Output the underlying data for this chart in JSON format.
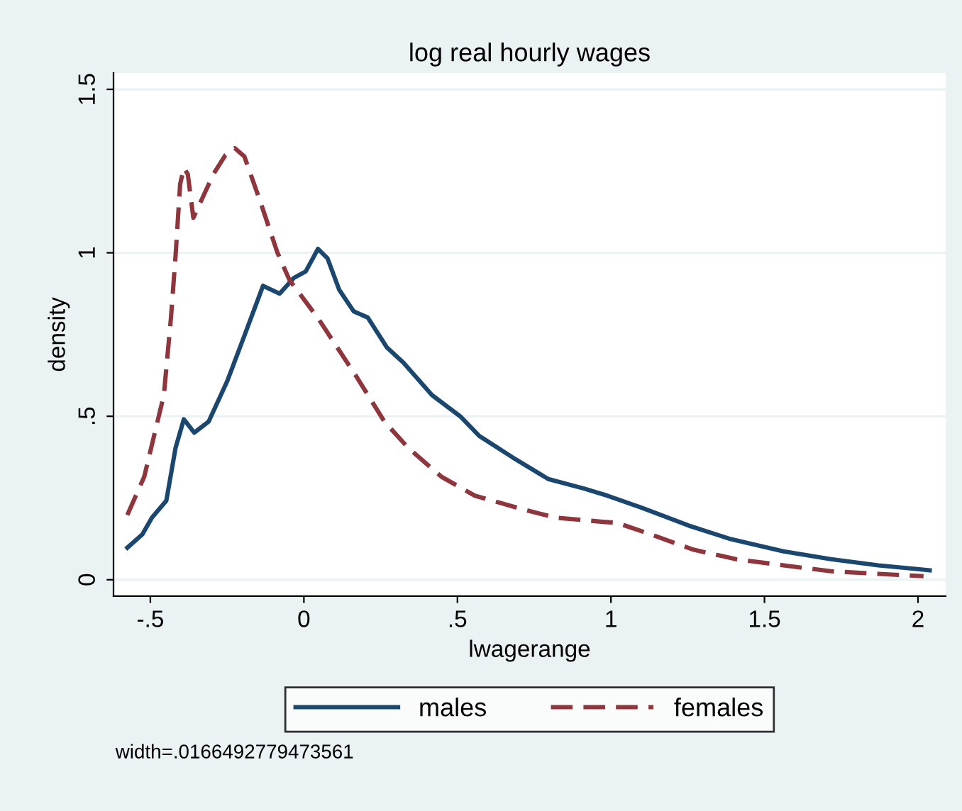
{
  "chart_data": {
    "type": "line",
    "title": "log real hourly wages",
    "xlabel": "lwagerange",
    "ylabel": "density",
    "xlim": [
      -0.62,
      2.09
    ],
    "ylim": [
      -0.05,
      1.55
    ],
    "xticks": [
      {
        "value": -0.5,
        "label": "-.5"
      },
      0,
      {
        "value": 0.5,
        "label": ".5"
      },
      1,
      {
        "value": 1.5,
        "label": "1.5"
      },
      2
    ],
    "yticks": [
      0,
      {
        "value": 0.5,
        "label": ".5"
      },
      1,
      {
        "value": 1.5,
        "label": "1.5"
      }
    ],
    "grid": "y",
    "legend": "bottom",
    "marker": "none",
    "annotations": [
      "width=.0166492779473561"
    ],
    "series": [
      {
        "name": "males",
        "color": "#1a476f",
        "line_style": "solid",
        "x": [
          -0.575,
          -0.526,
          -0.495,
          -0.448,
          -0.418,
          -0.391,
          -0.357,
          -0.31,
          -0.249,
          -0.202,
          -0.133,
          -0.079,
          -0.033,
          0.006,
          0.046,
          0.077,
          0.115,
          0.162,
          0.208,
          0.27,
          0.324,
          0.417,
          0.509,
          0.571,
          0.68,
          0.796,
          0.912,
          0.989,
          1.098,
          1.252,
          1.391,
          1.562,
          1.716,
          1.871,
          2.038
        ],
        "values": [
          0.098,
          0.139,
          0.19,
          0.242,
          0.403,
          0.491,
          0.45,
          0.484,
          0.609,
          0.726,
          0.899,
          0.875,
          0.923,
          0.943,
          1.012,
          0.983,
          0.887,
          0.821,
          0.802,
          0.711,
          0.664,
          0.565,
          0.5,
          0.44,
          0.374,
          0.308,
          0.279,
          0.257,
          0.221,
          0.166,
          0.124,
          0.087,
          0.063,
          0.044,
          0.029
        ]
      },
      {
        "name": "females",
        "color": "#90353b",
        "line_style": "dashed",
        "x": [
          -0.575,
          -0.52,
          -0.456,
          -0.433,
          -0.418,
          -0.403,
          -0.391,
          -0.378,
          -0.36,
          -0.295,
          -0.256,
          -0.225,
          -0.194,
          -0.14,
          -0.086,
          -0.047,
          0.046,
          0.17,
          0.262,
          0.34,
          0.448,
          0.557,
          0.711,
          0.819,
          0.974,
          1.02,
          1.129,
          1.268,
          1.407,
          1.562,
          1.716,
          1.871,
          2.018
        ],
        "values": [
          0.198,
          0.315,
          0.565,
          0.8,
          0.99,
          1.21,
          1.26,
          1.24,
          1.107,
          1.24,
          1.298,
          1.32,
          1.295,
          1.151,
          1.0,
          0.917,
          0.8,
          0.623,
          0.484,
          0.403,
          0.315,
          0.257,
          0.216,
          0.19,
          0.177,
          0.174,
          0.139,
          0.092,
          0.063,
          0.044,
          0.026,
          0.018,
          0.011
        ]
      }
    ]
  }
}
